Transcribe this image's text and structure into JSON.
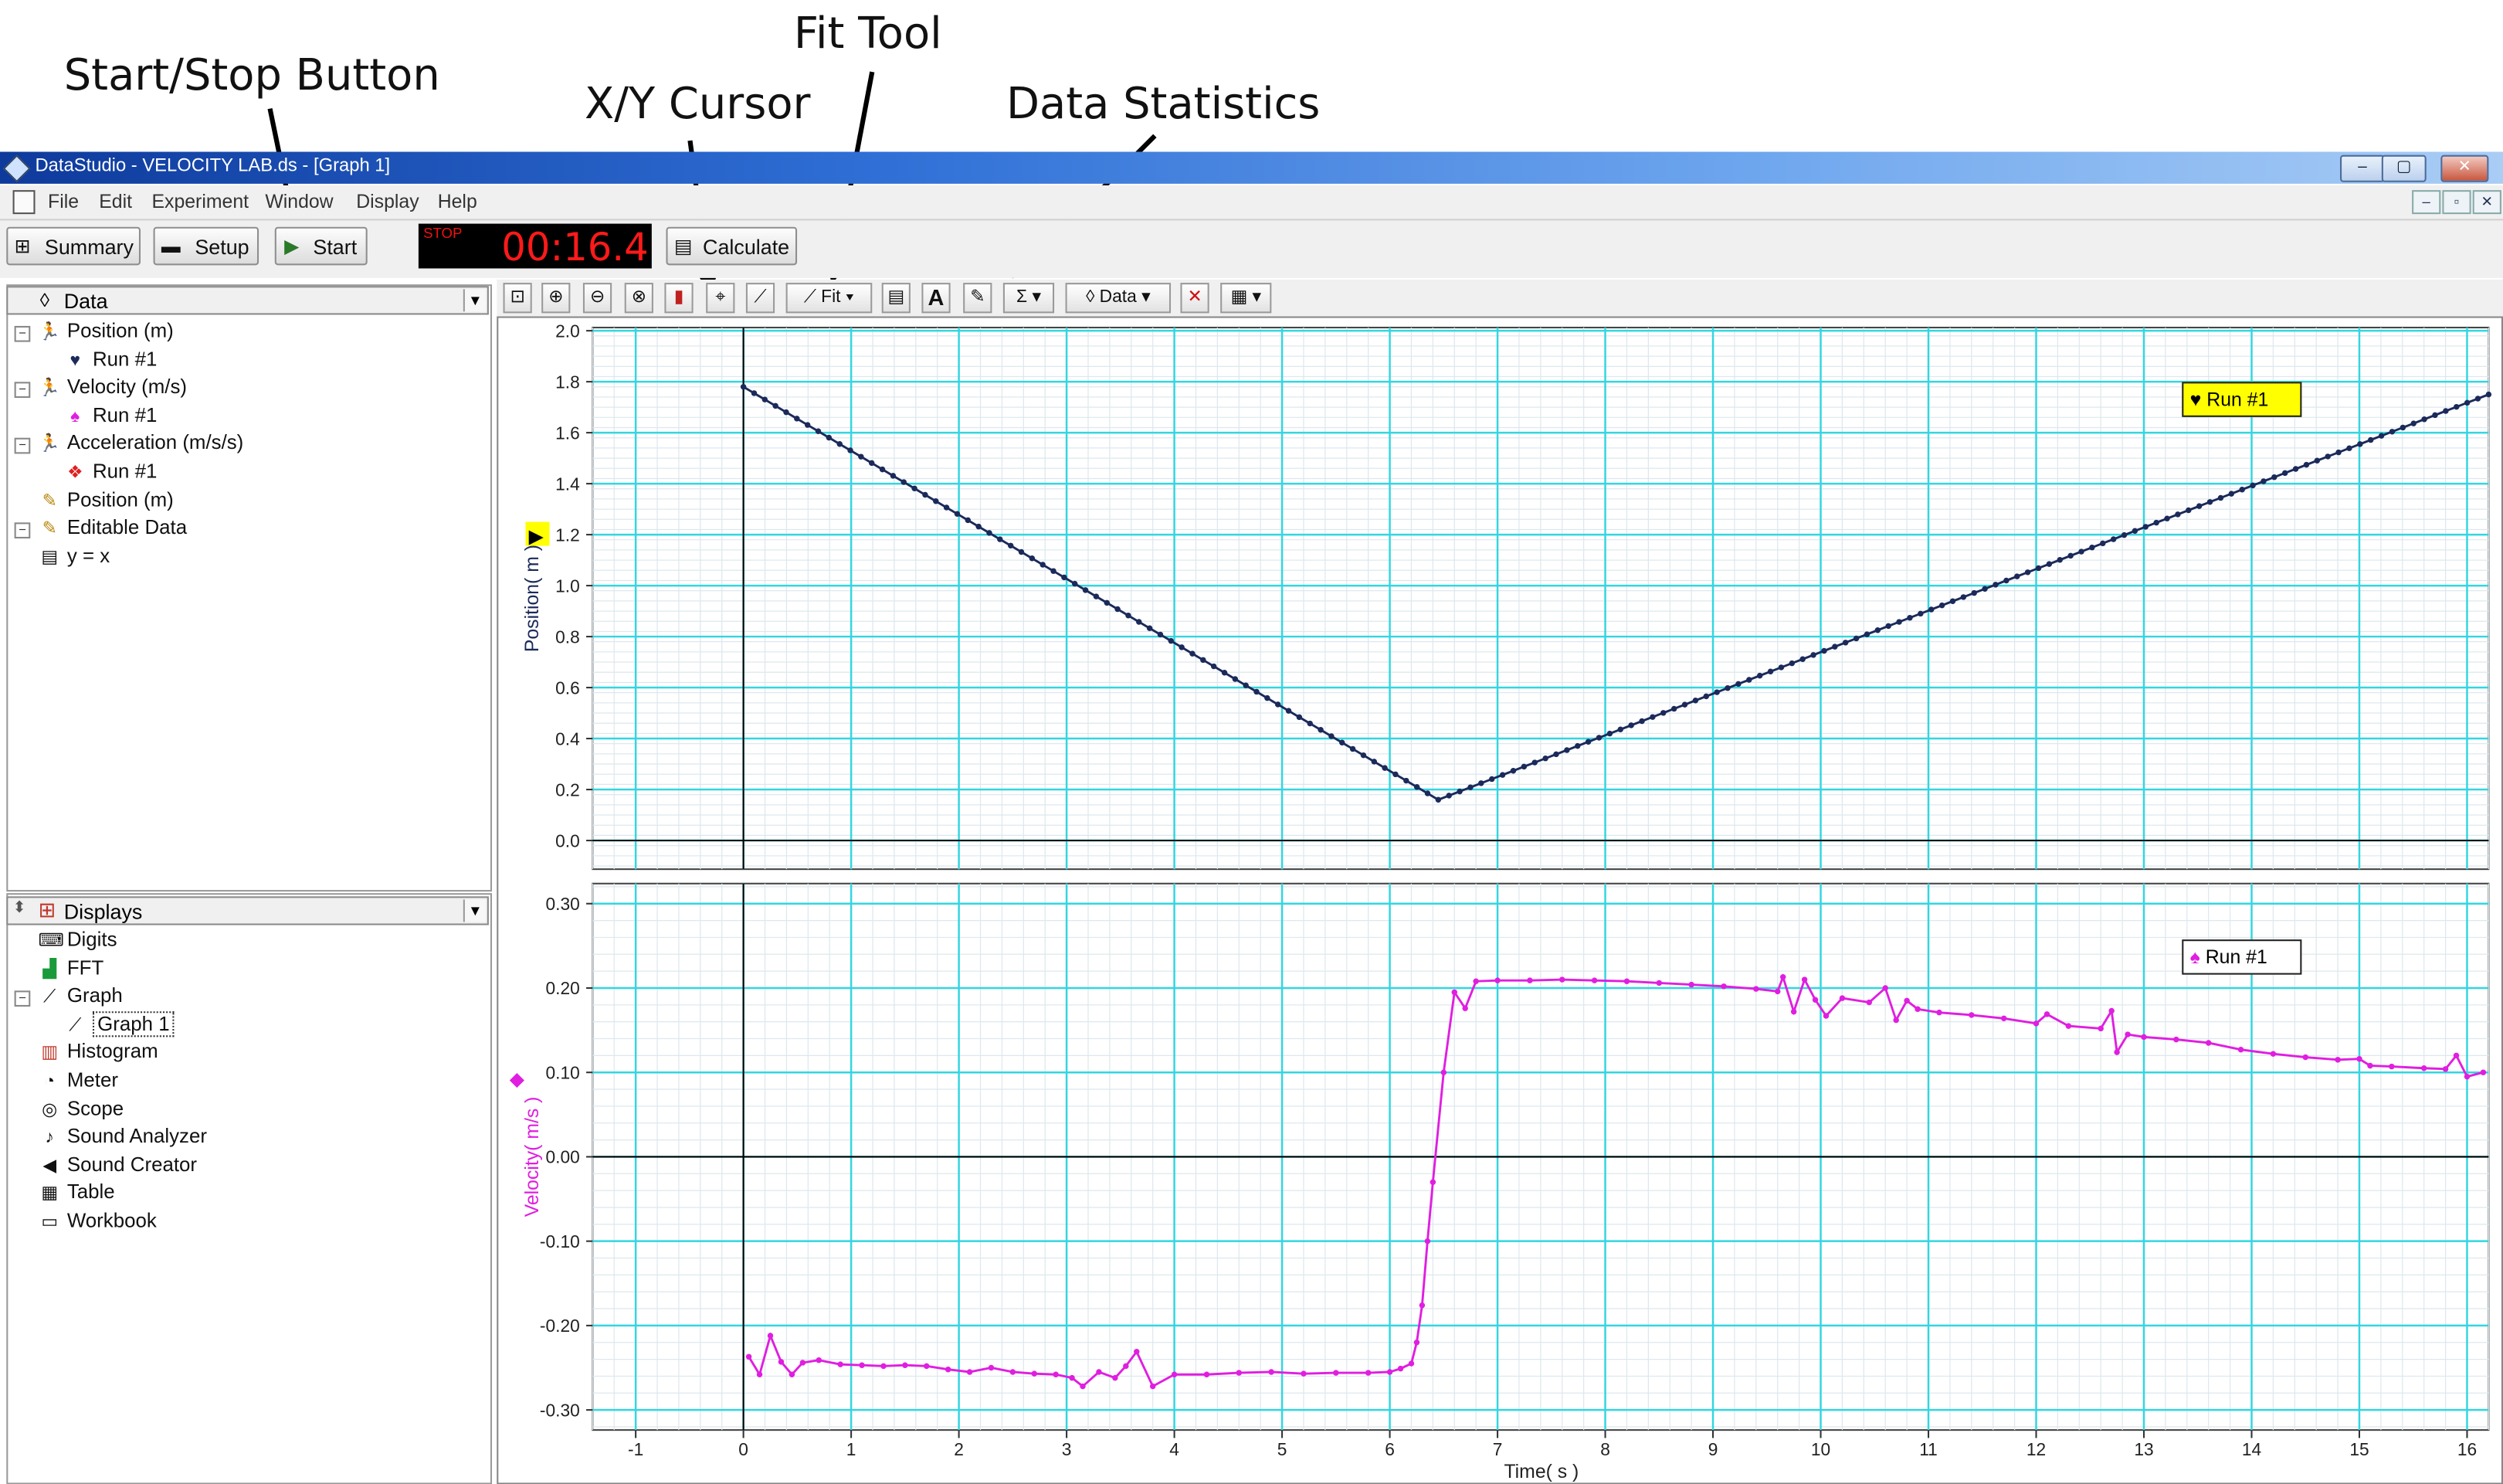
{
  "annotations": {
    "start_stop": "Start/Stop Button",
    "xy_cursor": "X/Y Cursor",
    "fit_tool": "Fit Tool",
    "data_statistics": "Data Statistics"
  },
  "window": {
    "title": "DataStudio - VELOCITY LAB.ds - [Graph 1]",
    "controls": [
      "–",
      "▢",
      "✕"
    ]
  },
  "menu": {
    "items": [
      "File",
      "Edit",
      "Experiment",
      "Window",
      "Display",
      "Help"
    ],
    "mdi_controls": [
      "–",
      "▫",
      "✕"
    ]
  },
  "toolbar": {
    "summary": "Summary",
    "setup": "Setup",
    "start": "Start",
    "timer_state": "STOP",
    "timer": "00:16.4",
    "calculate": "Calculate"
  },
  "graph_toolbar": {
    "fit_label": "Fit",
    "data_label": "Data",
    "icons": [
      "scale-to-fit-icon",
      "zoom-in-icon",
      "zoom-out-icon",
      "zoom-select-icon",
      "data-select-icon",
      "xy-cursor-icon",
      "slope-tool-icon",
      "fit-tool-icon",
      "calculator-icon",
      "annotation-icon",
      "prediction-tool-icon",
      "statistics-icon",
      "data-icon",
      "remove-icon",
      "settings-icon"
    ]
  },
  "data_panel": {
    "header": "Data",
    "items": [
      {
        "label": "Position (m)",
        "depth": 0,
        "icon": "sensor-runner-icon"
      },
      {
        "label": "Run #1",
        "depth": 1,
        "icon": "heart-marker-icon"
      },
      {
        "label": "Velocity (m/s)",
        "depth": 0,
        "icon": "sensor-runner-icon"
      },
      {
        "label": "Run #1",
        "depth": 1,
        "icon": "spade-marker-icon"
      },
      {
        "label": "Acceleration (m/s/s)",
        "depth": 0,
        "icon": "sensor-runner-icon"
      },
      {
        "label": "Run #1",
        "depth": 1,
        "icon": "diamond-marker-icon"
      },
      {
        "label": "Position (m)",
        "depth": 0,
        "icon": "pencil-icon"
      },
      {
        "label": "Editable Data",
        "depth": 0,
        "icon": "pencil-icon"
      },
      {
        "label": "y = x",
        "depth": 0,
        "icon": "calculator-icon"
      }
    ]
  },
  "displays_panel": {
    "header": "Displays",
    "items": [
      {
        "label": "Digits",
        "depth": 0,
        "icon": "digits-icon"
      },
      {
        "label": "FFT",
        "depth": 0,
        "icon": "fft-icon"
      },
      {
        "label": "Graph",
        "depth": 0,
        "icon": "graph-icon"
      },
      {
        "label": "Graph 1",
        "depth": 1,
        "icon": "graph-icon"
      },
      {
        "label": "Histogram",
        "depth": 0,
        "icon": "histogram-icon"
      },
      {
        "label": "Meter",
        "depth": 0,
        "icon": "meter-icon"
      },
      {
        "label": "Scope",
        "depth": 0,
        "icon": "scope-icon"
      },
      {
        "label": "Sound Analyzer",
        "depth": 0,
        "icon": "sound-analyzer-icon"
      },
      {
        "label": "Sound Creator",
        "depth": 0,
        "icon": "speaker-icon"
      },
      {
        "label": "Table",
        "depth": 0,
        "icon": "table-icon"
      },
      {
        "label": "Workbook",
        "depth": 0,
        "icon": "workbook-icon"
      }
    ]
  },
  "colors": {
    "position_series": "#1b2a5a",
    "velocity_series": "#e01ee0",
    "grid": "#33d6e0",
    "legend_highlight": "#ffff00"
  },
  "chart_data": [
    {
      "type": "line",
      "xlabel": "",
      "ylabel": "Position( m )",
      "xlim": [
        -1.4,
        16.2
      ],
      "ylim": [
        -0.1,
        2.0
      ],
      "yticks": [
        0.0,
        0.2,
        0.4,
        0.6,
        0.8,
        1.0,
        1.2,
        1.4,
        1.6,
        1.8,
        2.0
      ],
      "ytick_labels": [
        "0.0",
        "0.2",
        "0.4",
        "0.6",
        "0.8",
        "1.0",
        "1.2",
        "1.4",
        "1.6",
        "1.8",
        "2.0"
      ],
      "grid": true,
      "legend": "top-right",
      "series": [
        {
          "name": "Run #1",
          "x": [
            0.0,
            6.45,
            16.2
          ],
          "y": [
            1.78,
            0.16,
            1.75
          ]
        }
      ]
    },
    {
      "type": "line",
      "xlabel": "Time( s )",
      "ylabel": "Velocity( m/s )",
      "xlim": [
        -1.4,
        16.2
      ],
      "ylim": [
        -0.32,
        0.32
      ],
      "xticks": [
        -1,
        0,
        1,
        2,
        3,
        4,
        5,
        6,
        7,
        8,
        9,
        10,
        11,
        12,
        13,
        14,
        15,
        16
      ],
      "xtick_labels": [
        "-1",
        "0",
        "1",
        "2",
        "3",
        "4",
        "5",
        "6",
        "7",
        "8",
        "9",
        "10",
        "11",
        "12",
        "13",
        "14",
        "15",
        "16"
      ],
      "yticks": [
        -0.3,
        -0.2,
        -0.1,
        0.0,
        0.1,
        0.2,
        0.3
      ],
      "ytick_labels": [
        "-0.30",
        "-0.20",
        "-0.10",
        "0.00",
        "0.10",
        "0.20",
        "0.30"
      ],
      "grid": true,
      "legend": "top-right",
      "series": [
        {
          "name": "Run #1",
          "x": [
            0.05,
            0.15,
            0.25,
            0.35,
            0.45,
            0.55,
            0.7,
            0.9,
            1.1,
            1.3,
            1.5,
            1.7,
            1.9,
            2.1,
            2.3,
            2.5,
            2.7,
            2.9,
            3.05,
            3.15,
            3.3,
            3.45,
            3.55,
            3.65,
            3.8,
            4.0,
            4.3,
            4.6,
            4.9,
            5.2,
            5.5,
            5.8,
            6.0,
            6.1,
            6.2,
            6.25,
            6.3,
            6.35,
            6.4,
            6.5,
            6.6,
            6.7,
            6.8,
            7.0,
            7.3,
            7.6,
            7.9,
            8.2,
            8.5,
            8.8,
            9.1,
            9.4,
            9.6,
            9.65,
            9.75,
            9.85,
            9.95,
            10.05,
            10.2,
            10.45,
            10.6,
            10.7,
            10.8,
            10.9,
            11.1,
            11.4,
            11.7,
            12.0,
            12.1,
            12.3,
            12.6,
            12.7,
            12.75,
            12.85,
            13.0,
            13.3,
            13.6,
            13.9,
            14.2,
            14.5,
            14.8,
            15.0,
            15.1,
            15.3,
            15.6,
            15.8,
            15.9,
            16.0,
            16.15
          ],
          "y": [
            -0.237,
            -0.258,
            -0.212,
            -0.243,
            -0.258,
            -0.244,
            -0.241,
            -0.246,
            -0.247,
            -0.248,
            -0.247,
            -0.248,
            -0.252,
            -0.255,
            -0.25,
            -0.255,
            -0.257,
            -0.258,
            -0.262,
            -0.272,
            -0.255,
            -0.262,
            -0.248,
            -0.231,
            -0.272,
            -0.258,
            -0.258,
            -0.256,
            -0.255,
            -0.257,
            -0.256,
            -0.256,
            -0.255,
            -0.251,
            -0.245,
            -0.22,
            -0.176,
            -0.1,
            -0.03,
            0.1,
            0.195,
            0.176,
            0.208,
            0.209,
            0.209,
            0.21,
            0.209,
            0.208,
            0.206,
            0.204,
            0.202,
            0.199,
            0.196,
            0.213,
            0.172,
            0.21,
            0.186,
            0.167,
            0.188,
            0.183,
            0.2,
            0.162,
            0.185,
            0.175,
            0.171,
            0.168,
            0.164,
            0.158,
            0.169,
            0.155,
            0.152,
            0.173,
            0.124,
            0.145,
            0.142,
            0.139,
            0.135,
            0.127,
            0.122,
            0.118,
            0.115,
            0.116,
            0.108,
            0.107,
            0.105,
            0.104,
            0.12,
            0.095,
            0.1
          ]
        }
      ]
    }
  ]
}
